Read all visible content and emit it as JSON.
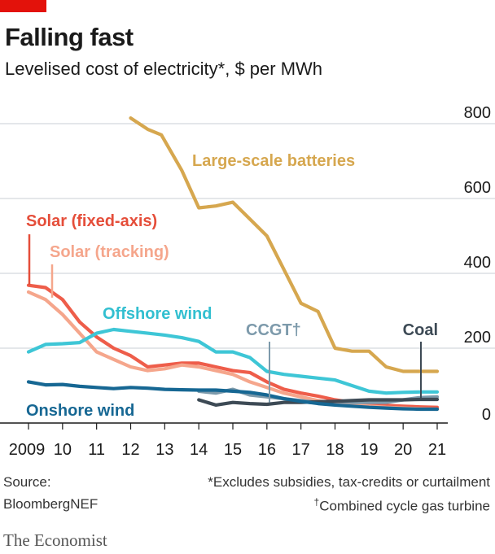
{
  "header": {
    "title": "Falling fast",
    "subtitle": "Levelised cost of electricity*, $ per MWh"
  },
  "footer": {
    "source_line1": "Source:",
    "source_line2": "BloombergNEF",
    "note1": "*Excludes subsidies, tax-credits or curtailment",
    "note2_mark": "†",
    "note2": "Combined cycle gas turbine",
    "brand": "The Economist"
  },
  "chart_data": {
    "type": "line",
    "title": "Falling fast",
    "subtitle": "Levelised cost of electricity*, $ per MWh",
    "xlabel": "",
    "ylabel": "",
    "xlim": [
      2009,
      2021.4
    ],
    "ylim": [
      0,
      800
    ],
    "y_ticks": [
      0,
      200,
      400,
      600,
      800
    ],
    "x_tick_values": [
      2009,
      2010,
      2011,
      2012,
      2013,
      2014,
      2015,
      2016,
      2017,
      2018,
      2019,
      2020,
      2021
    ],
    "x_tick_labels": [
      "2009",
      "10",
      "11",
      "12",
      "13",
      "14",
      "15",
      "16",
      "17",
      "18",
      "19",
      "20",
      "21"
    ],
    "y_axis_side": "right",
    "grid": true,
    "series": [
      {
        "name": "Large-scale batteries",
        "color": "#d6a74f",
        "x": [
          2012.0,
          2012.5,
          2012.9,
          2013.5,
          2014.0,
          2014.5,
          2015.0,
          2015.5,
          2016.0,
          2016.5,
          2017.0,
          2017.5,
          2018.0,
          2018.5,
          2019.0,
          2019.5,
          2020.0,
          2020.5,
          2021.0
        ],
        "y": [
          815,
          785,
          770,
          675,
          575,
          580,
          590,
          545,
          500,
          410,
          320,
          298,
          200,
          192,
          192,
          150,
          138,
          138,
          138
        ]
      },
      {
        "name": "Solar (fixed-axis)",
        "color": "#ee5d4a",
        "x": [
          2009.0,
          2009.5,
          2010.0,
          2010.5,
          2011.0,
          2011.5,
          2012.0,
          2012.5,
          2013.0,
          2013.5,
          2014.0,
          2014.5,
          2015.0,
          2015.5,
          2016.0,
          2016.5,
          2017.0,
          2017.5,
          2018.0,
          2018.5,
          2019.0,
          2019.5,
          2020.0,
          2020.5,
          2021.0
        ],
        "y": [
          368,
          362,
          330,
          270,
          230,
          200,
          180,
          150,
          155,
          160,
          160,
          150,
          140,
          135,
          110,
          90,
          80,
          72,
          62,
          55,
          50,
          47,
          45,
          43,
          42
        ]
      },
      {
        "name": "Solar (tracking)",
        "color": "#f5a68c",
        "x": [
          2009.0,
          2009.5,
          2010.0,
          2010.5,
          2011.0,
          2011.5,
          2012.0,
          2012.5,
          2013.0,
          2013.5,
          2014.0,
          2014.5,
          2015.0,
          2015.5,
          2016.0,
          2016.5,
          2017.0,
          2017.5,
          2018.0,
          2018.5,
          2019.0,
          2019.5,
          2020.0,
          2020.5,
          2021.0
        ],
        "y": [
          350,
          330,
          290,
          240,
          190,
          170,
          150,
          140,
          145,
          155,
          150,
          140,
          130,
          110,
          95,
          80,
          70,
          60,
          52,
          48,
          45,
          42,
          40,
          38,
          37
        ]
      },
      {
        "name": "Offshore wind",
        "color": "#3ec6d6",
        "x": [
          2009.0,
          2009.5,
          2010.0,
          2010.5,
          2011.0,
          2011.5,
          2012.0,
          2012.5,
          2013.0,
          2013.5,
          2014.0,
          2014.5,
          2015.0,
          2015.5,
          2016.0,
          2016.5,
          2017.0,
          2017.5,
          2018.0,
          2018.5,
          2019.0,
          2019.5,
          2020.0,
          2020.5,
          2021.0
        ],
        "y": [
          190,
          210,
          212,
          215,
          240,
          250,
          245,
          240,
          235,
          228,
          218,
          190,
          190,
          175,
          138,
          130,
          125,
          120,
          115,
          100,
          85,
          80,
          82,
          83,
          83
        ]
      },
      {
        "name": "CCGT†",
        "color": "#7d9aab",
        "x": [
          2014.0,
          2014.5,
          2015.0,
          2015.5,
          2016.0,
          2016.5,
          2017.0,
          2017.5,
          2018.0,
          2018.5,
          2019.0,
          2019.5,
          2020.0,
          2020.5,
          2021.0
        ],
        "y": [
          85,
          80,
          90,
          75,
          70,
          65,
          60,
          55,
          58,
          55,
          55,
          55,
          62,
          68,
          70
        ]
      },
      {
        "name": "Coal",
        "color": "#3d4a55",
        "x": [
          2014.0,
          2014.5,
          2015.0,
          2015.5,
          2016.0,
          2016.5,
          2017.0,
          2017.5,
          2018.0,
          2018.5,
          2019.0,
          2019.5,
          2020.0,
          2020.5,
          2021.0
        ],
        "y": [
          62,
          48,
          55,
          52,
          50,
          55,
          55,
          57,
          58,
          60,
          62,
          62,
          62,
          63,
          63
        ]
      },
      {
        "name": "Onshore wind",
        "color": "#166793",
        "x": [
          2009.0,
          2009.5,
          2010.0,
          2010.5,
          2011.0,
          2011.5,
          2012.0,
          2012.5,
          2013.0,
          2013.5,
          2014.0,
          2014.5,
          2015.0,
          2015.5,
          2016.0,
          2016.5,
          2017.0,
          2017.5,
          2018.0,
          2018.5,
          2019.0,
          2019.5,
          2020.0,
          2020.5,
          2021.0
        ],
        "y": [
          110,
          102,
          103,
          98,
          95,
          92,
          95,
          93,
          90,
          89,
          88,
          88,
          85,
          82,
          75,
          65,
          58,
          52,
          48,
          45,
          42,
          40,
          38,
          37,
          37
        ]
      }
    ]
  }
}
